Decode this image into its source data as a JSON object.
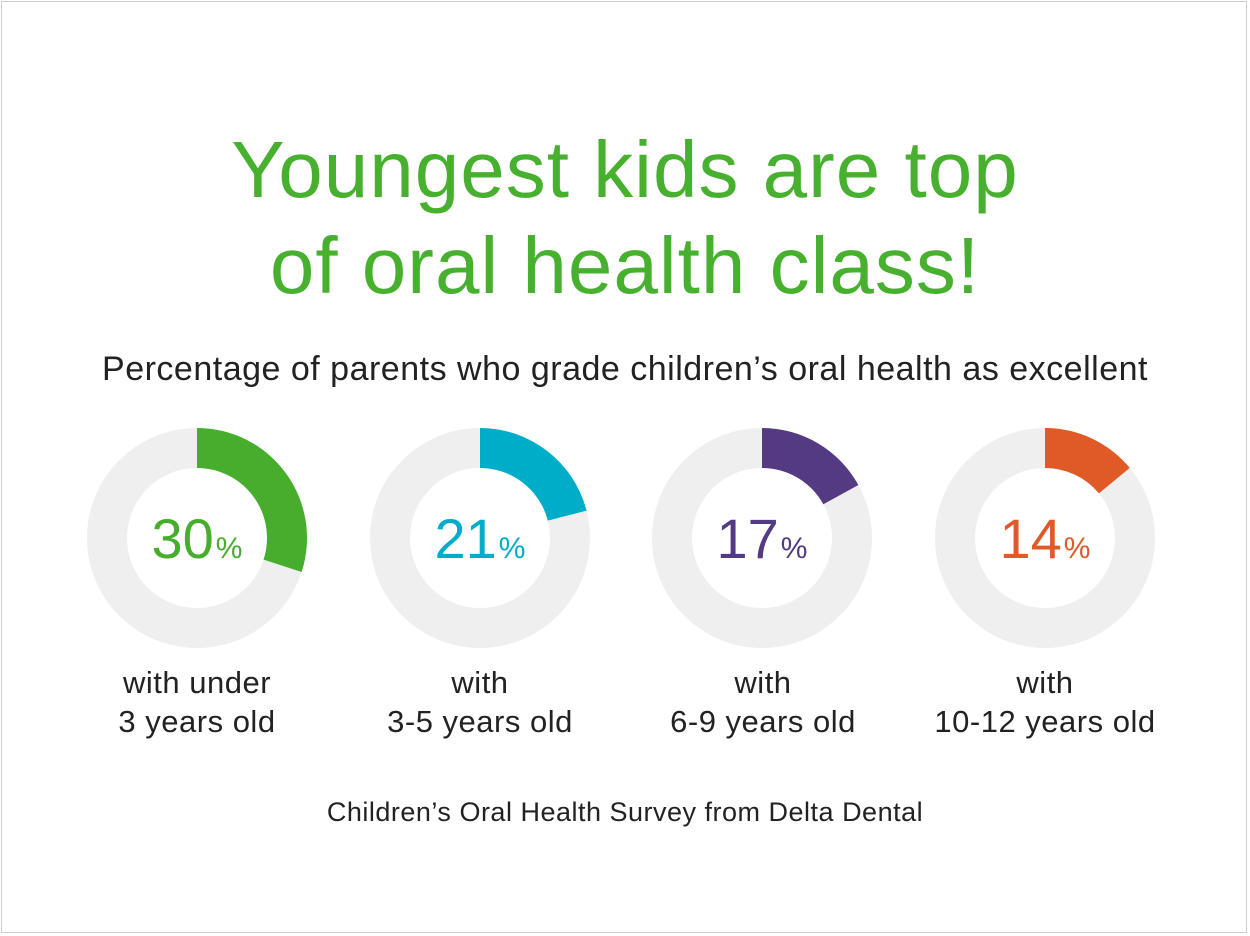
{
  "chart_data": {
    "type": "donut",
    "title_lines": [
      "Youngest kids are top",
      "of oral health class!"
    ],
    "subtitle": "Percentage of parents who grade children’s oral health as excellent",
    "unit": "%",
    "series": [
      {
        "value": 30,
        "value_text": "30",
        "label_lines": [
          "with under",
          "3 years old"
        ],
        "color": "#46ae2c"
      },
      {
        "value": 21,
        "value_text": "21",
        "label_lines": [
          "with",
          "3-5 years old"
        ],
        "color": "#00adc8"
      },
      {
        "value": 17,
        "value_text": "17",
        "label_lines": [
          "with",
          "6-9 years old"
        ],
        "color": "#533a82"
      },
      {
        "value": 14,
        "value_text": "14",
        "label_lines": [
          "with",
          "10-12 years old"
        ],
        "color": "#e05a28"
      }
    ],
    "track_color": "#efefef",
    "source": "Children’s Oral Health Survey from Delta Dental"
  }
}
